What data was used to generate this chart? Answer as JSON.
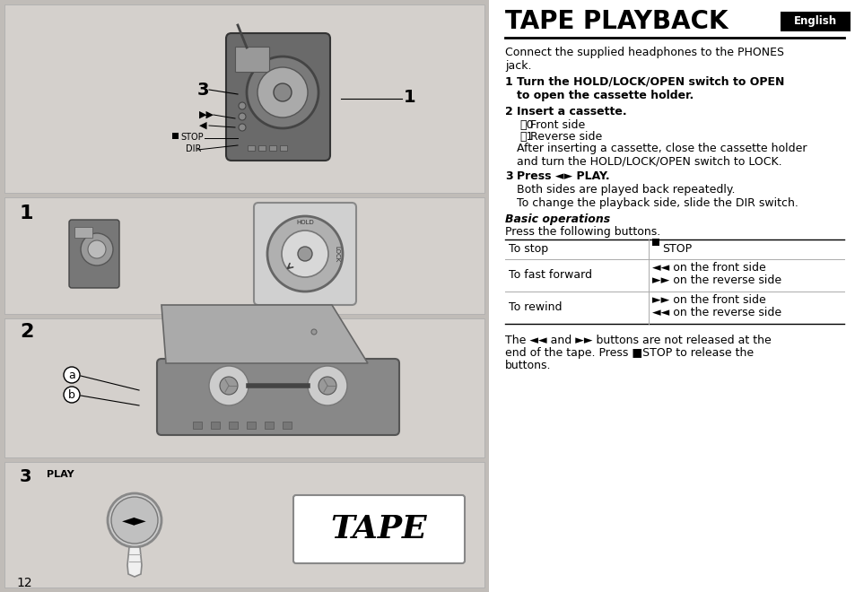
{
  "title": "TAPE PLAYBACK",
  "english_label": "English",
  "bg_color": "#ffffff",
  "left_panel_bg": "#c8c4c0",
  "intro_text": "Connect the supplied headphones to the PHONES\njack.",
  "step1_num": "1",
  "step1_bold": "Turn the HOLD/LOCK/OPEN switch to OPEN\nto open the cassette holder.",
  "step2_num": "2",
  "step2_bold": "Insert a cassette.",
  "step2_a": "␶0 Front side",
  "step2_b": "␷1 Reverse side",
  "step2_extra": "After inserting a cassette, close the cassette holder\nand turn the HOLD/LOCK/OPEN switch to LOCK.",
  "step3_num": "3",
  "step3_bold": "Press ◄► PLAY.",
  "step3_extra": "Both sides are played back repeatedly.\nTo change the playback side, slide the DIR switch.",
  "basic_ops_title": "Basic operations",
  "basic_ops_sub": "Press the following buttons.",
  "table_row1_left": "To stop",
  "table_row1_right": "■STOP",
  "table_row2_left": "To fast forward",
  "table_row2_right_1": "◄◄ on the front side",
  "table_row2_right_2": "►► on the reverse side",
  "table_row3_left": "To rewind",
  "table_row3_right_1": "►► on the front side",
  "table_row3_right_2": "◄◄ on the reverse side",
  "footer_line1": "The ◄◄ and ►► buttons are not released at the",
  "footer_line2": "end of the tape. Press ■STOP to release the",
  "footer_line3": "buttons.",
  "page_num": "12",
  "panel1_label_3": "3",
  "panel1_label_1": "1",
  "panel1_ff": "►►",
  "panel1_rew": "◄",
  "panel1_stop": "■STOP",
  "panel1_dir": "DIR",
  "panel2_label_1": "1",
  "panel3_label_2": "2",
  "panel3_a": "a",
  "panel3_b": "b",
  "panel4_label_3": "3",
  "panel4_play_text": "PLAY",
  "panel4_tape": "TAPE"
}
